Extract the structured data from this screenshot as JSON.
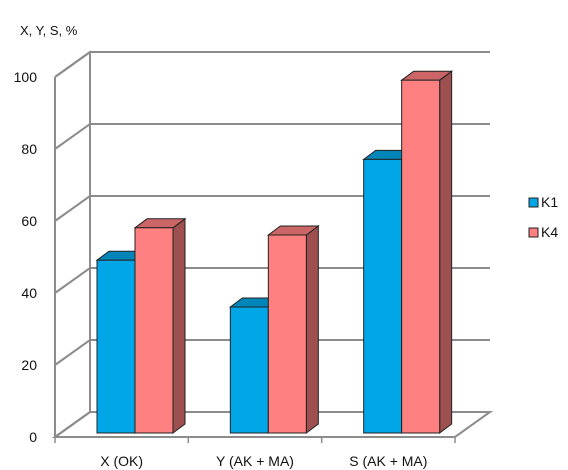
{
  "chart_data": {
    "type": "bar",
    "ylabel": "X, Y, S, %",
    "categories": [
      "X (OK)",
      "Y (AK + MA)",
      "S (AK + MA)"
    ],
    "series": [
      {
        "name": "K1",
        "values": [
          48,
          35,
          76
        ],
        "color": "#00A6E6"
      },
      {
        "name": "K4",
        "values": [
          57,
          55,
          98
        ],
        "color": "#FF8080"
      }
    ],
    "ylim": [
      0,
      100
    ],
    "yticks": [
      0,
      20,
      40,
      60,
      80,
      100
    ],
    "grid": true,
    "legend": "right",
    "style": "3d-clustered-column"
  }
}
